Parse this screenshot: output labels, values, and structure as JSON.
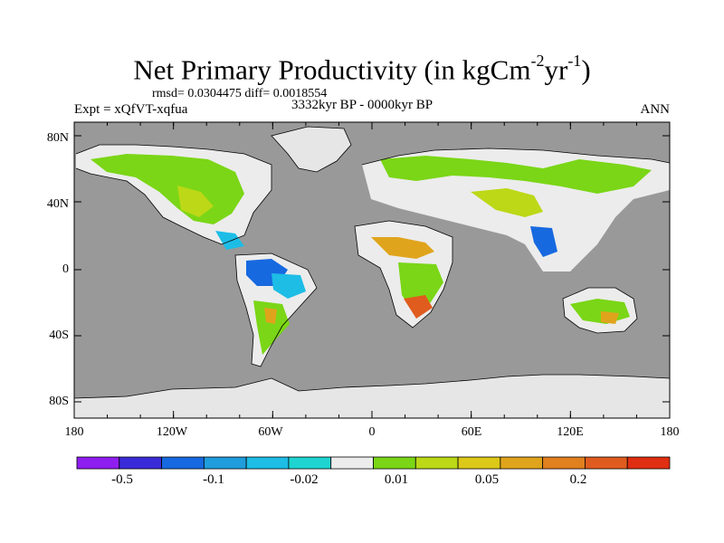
{
  "title": {
    "prefix": "Net Primary Productivity (in kgCm",
    "sup1": "-2",
    "mid": "yr",
    "sup2": "-1",
    "suffix": ")"
  },
  "stats": "rmsd= 0.0304475 diff= 0.0018554",
  "experiment": "Expt = xQfVT-xqfua",
  "period": "3332kyr BP - 0000kyr BP",
  "season": "ANN",
  "axes": {
    "y_ticks": [
      "80N",
      "40N",
      "0",
      "40S",
      "80S"
    ],
    "x_ticks": [
      "180",
      "120W",
      "60W",
      "0",
      "60E",
      "120E",
      "180"
    ]
  },
  "colorbar": {
    "colors": [
      "#8f1ef0",
      "#3a2bd8",
      "#1769e0",
      "#1f9ddc",
      "#1dbde6",
      "#1fd4d0",
      "#ececec",
      "#7ad616",
      "#bcd816",
      "#dcc818",
      "#e0a41c",
      "#e0801e",
      "#e05c1e",
      "#e02e12"
    ],
    "labels": [
      "-0.5",
      "-0.1",
      "-0.02",
      "0.01",
      "0.05",
      "0.2"
    ]
  },
  "legend_colors": {
    "ocean": "#999999",
    "ice": "#e6e6e6"
  }
}
